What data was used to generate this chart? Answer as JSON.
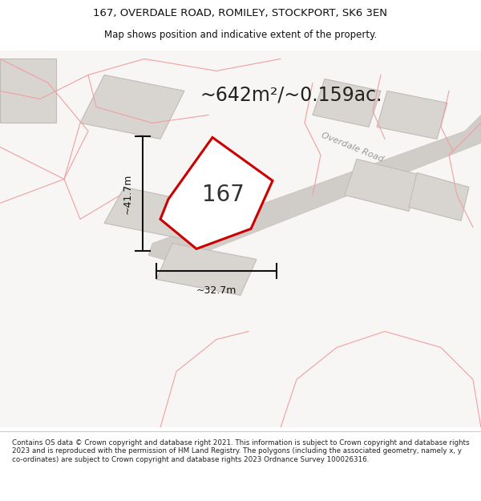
{
  "title_line1": "167, OVERDALE ROAD, ROMILEY, STOCKPORT, SK6 3EN",
  "title_line2": "Map shows position and indicative extent of the property.",
  "area_text": "~642m²/~0.159ac.",
  "label_167": "167",
  "dim_width": "~32.7m",
  "dim_height": "~41.7m",
  "road_label": "Overdale Road",
  "footer_text": "Contains OS data © Crown copyright and database right 2021. This information is subject to Crown copyright and database rights 2023 and is reproduced with the permission of HM Land Registry. The polygons (including the associated geometry, namely x, y co-ordinates) are subject to Crown copyright and database rights 2023 Ordnance Survey 100026316.",
  "map_bg": "#f7f6f4",
  "plot_fill": "#ffffff",
  "plot_edge": "#cc0000",
  "building_fill": "#d8d5d0",
  "building_edge": "#c0bcb8",
  "boundary_color": "#f0a0a0",
  "road_fill": "#d0ccc8",
  "road_edge": "#c8c4c0",
  "white": "#ffffff",
  "black": "#111111",
  "title_fs": 9.5,
  "subtitle_fs": 8.5,
  "area_fs": 17,
  "label_fs": 20,
  "dim_fs": 9,
  "footer_fs": 6.3
}
